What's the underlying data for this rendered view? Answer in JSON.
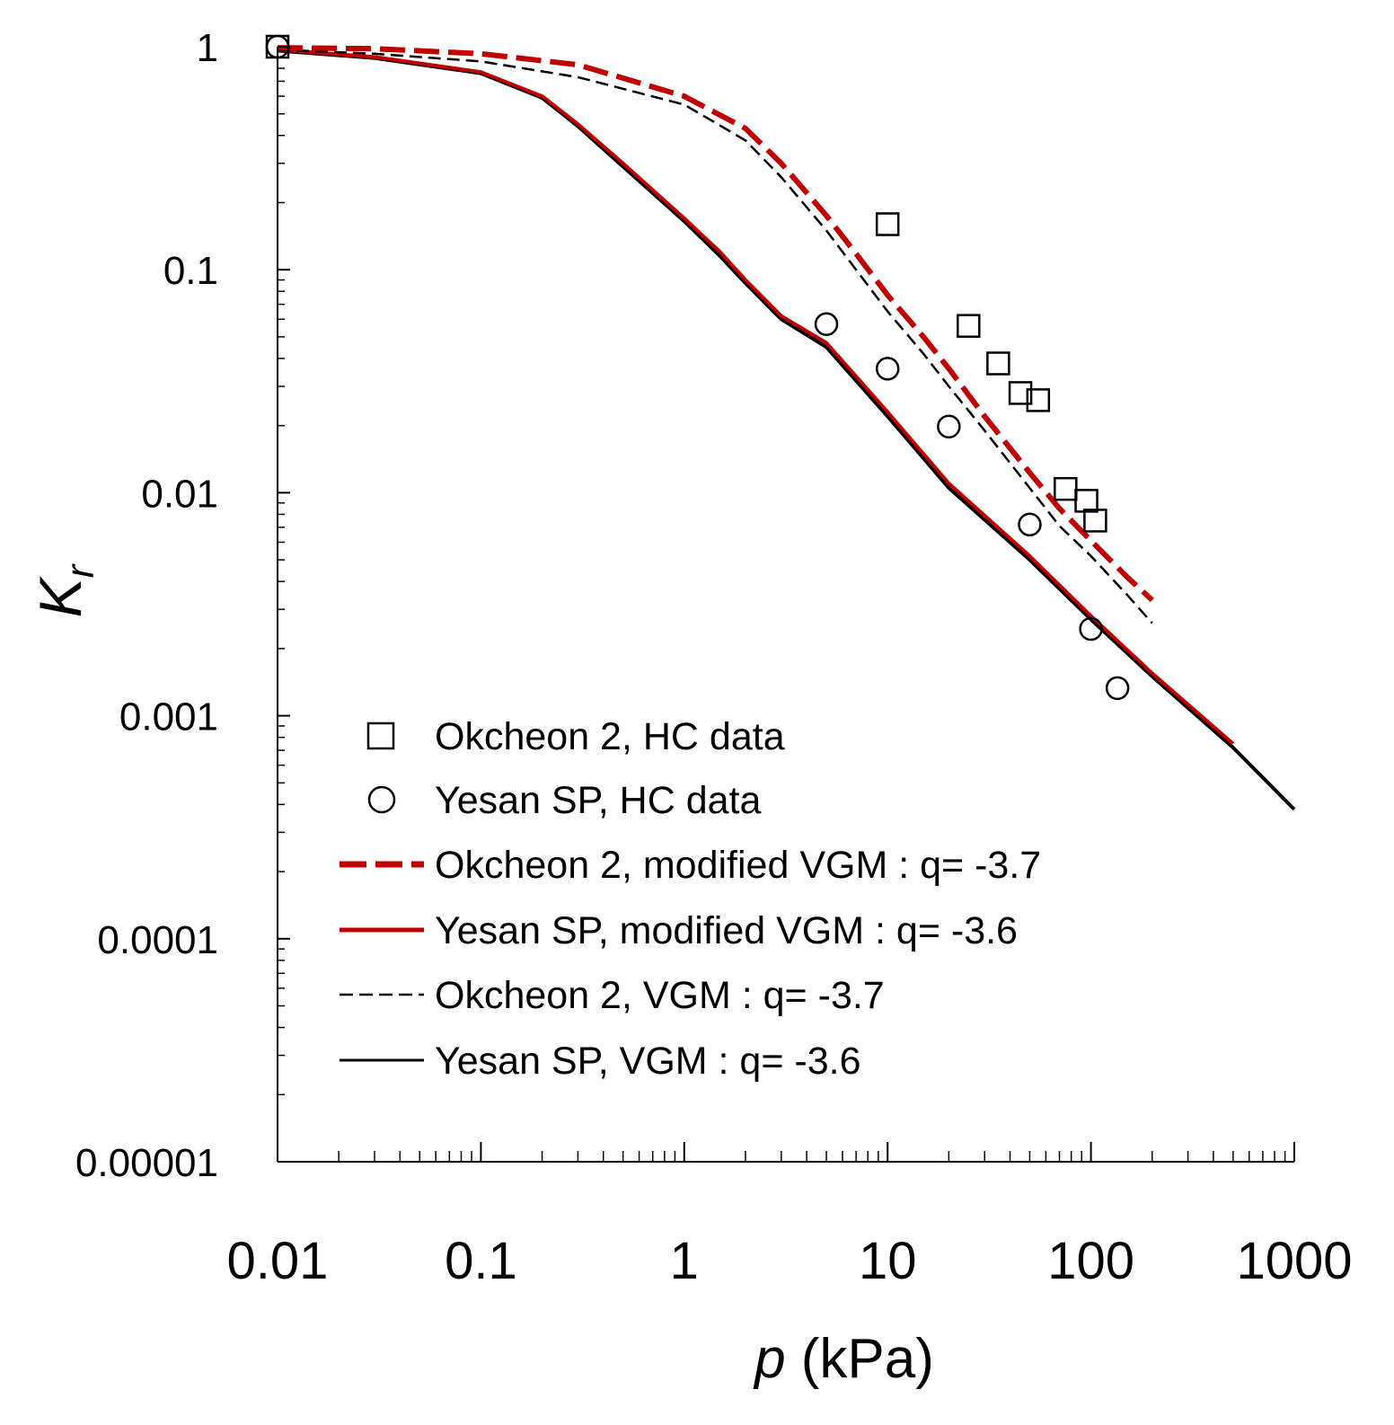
{
  "chart_data": {
    "type": "scatter",
    "title": "",
    "xlabel": {
      "symbol": "p",
      "unit": " (kPa)"
    },
    "ylabel": {
      "symbol": "K",
      "subscript": "r"
    },
    "xscale": "log",
    "yscale": "log",
    "xlim": [
      0.01,
      1000
    ],
    "ylim": [
      1e-05,
      1
    ],
    "xticks": [
      {
        "value": 0.01,
        "label": "0.01"
      },
      {
        "value": 0.1,
        "label": "0.1"
      },
      {
        "value": 1,
        "label": "1"
      },
      {
        "value": 10,
        "label": "10"
      },
      {
        "value": 100,
        "label": "100"
      },
      {
        "value": 1000,
        "label": "1000"
      }
    ],
    "yticks": [
      {
        "value": 1,
        "label": "1"
      },
      {
        "value": 0.1,
        "label": "0.1"
      },
      {
        "value": 0.01,
        "label": "0.01"
      },
      {
        "value": 0.001,
        "label": "0.001"
      },
      {
        "value": 0.0001,
        "label": "0.0001"
      },
      {
        "value": 1e-05,
        "label": "0.00001"
      }
    ],
    "grid": false,
    "legend_position": "bottom-left",
    "series": [
      {
        "name": "Okcheon 2, HC data",
        "kind": "marker",
        "marker": "square",
        "color": "#000000",
        "x": [
          0.01,
          10,
          25,
          35,
          45,
          55,
          75,
          95,
          105
        ],
        "y": [
          1.0,
          0.16,
          0.056,
          0.038,
          0.028,
          0.026,
          0.0104,
          0.0092,
          0.0075
        ]
      },
      {
        "name": "Yesan SP, HC data",
        "kind": "marker",
        "marker": "circle",
        "color": "#000000",
        "x": [
          0.01,
          5,
          10,
          20,
          50,
          100,
          135
        ],
        "y": [
          1.0,
          0.057,
          0.036,
          0.0198,
          0.0072,
          0.00245,
          0.00133
        ]
      },
      {
        "name": "Okcheon 2, modified VGM : q= -3.7",
        "kind": "line",
        "style": "dashed-bold",
        "color": "#c00000",
        "x": [
          0.01,
          0.03,
          0.1,
          0.3,
          1,
          2,
          3,
          5,
          7,
          10,
          15,
          20,
          30,
          50,
          70,
          100,
          150,
          200
        ],
        "y": [
          0.99,
          0.98,
          0.93,
          0.83,
          0.6,
          0.43,
          0.3,
          0.175,
          0.118,
          0.077,
          0.05,
          0.036,
          0.022,
          0.0123,
          0.0085,
          0.0061,
          0.0042,
          0.0033
        ]
      },
      {
        "name": "Yesan SP, modified VGM : q= -3.6",
        "kind": "line",
        "style": "solid-bold",
        "color": "#c00000",
        "x": [
          0.01,
          0.03,
          0.1,
          0.2,
          0.3,
          0.5,
          1,
          1.5,
          2,
          3,
          5,
          10,
          20,
          50,
          100,
          200,
          500
        ],
        "y": [
          0.97,
          0.9,
          0.77,
          0.6,
          0.45,
          0.3,
          0.17,
          0.12,
          0.09,
          0.062,
          0.047,
          0.023,
          0.011,
          0.0052,
          0.0028,
          0.00155,
          0.00075
        ]
      },
      {
        "name": "Okcheon 2, VGM : q= -3.7",
        "kind": "line",
        "style": "dashed-thin",
        "color": "#000000",
        "x": [
          0.01,
          0.03,
          0.1,
          0.3,
          1,
          2,
          3,
          5,
          7,
          10,
          15,
          20,
          30,
          50,
          70,
          100,
          150,
          200
        ],
        "y": [
          0.97,
          0.93,
          0.86,
          0.73,
          0.55,
          0.38,
          0.26,
          0.15,
          0.1,
          0.065,
          0.042,
          0.03,
          0.019,
          0.0105,
          0.0071,
          0.0052,
          0.0035,
          0.0026
        ]
      },
      {
        "name": "Yesan SP, VGM : q= -3.6",
        "kind": "line",
        "style": "solid-bold",
        "color": "#000000",
        "x": [
          0.01,
          0.03,
          0.1,
          0.2,
          0.3,
          0.5,
          1,
          1.5,
          2,
          3,
          5,
          10,
          20,
          50,
          100,
          200,
          500,
          1000
        ],
        "y": [
          0.96,
          0.89,
          0.76,
          0.59,
          0.44,
          0.29,
          0.165,
          0.115,
          0.087,
          0.06,
          0.045,
          0.022,
          0.0105,
          0.005,
          0.0027,
          0.0015,
          0.00072,
          0.00038
        ]
      }
    ]
  }
}
